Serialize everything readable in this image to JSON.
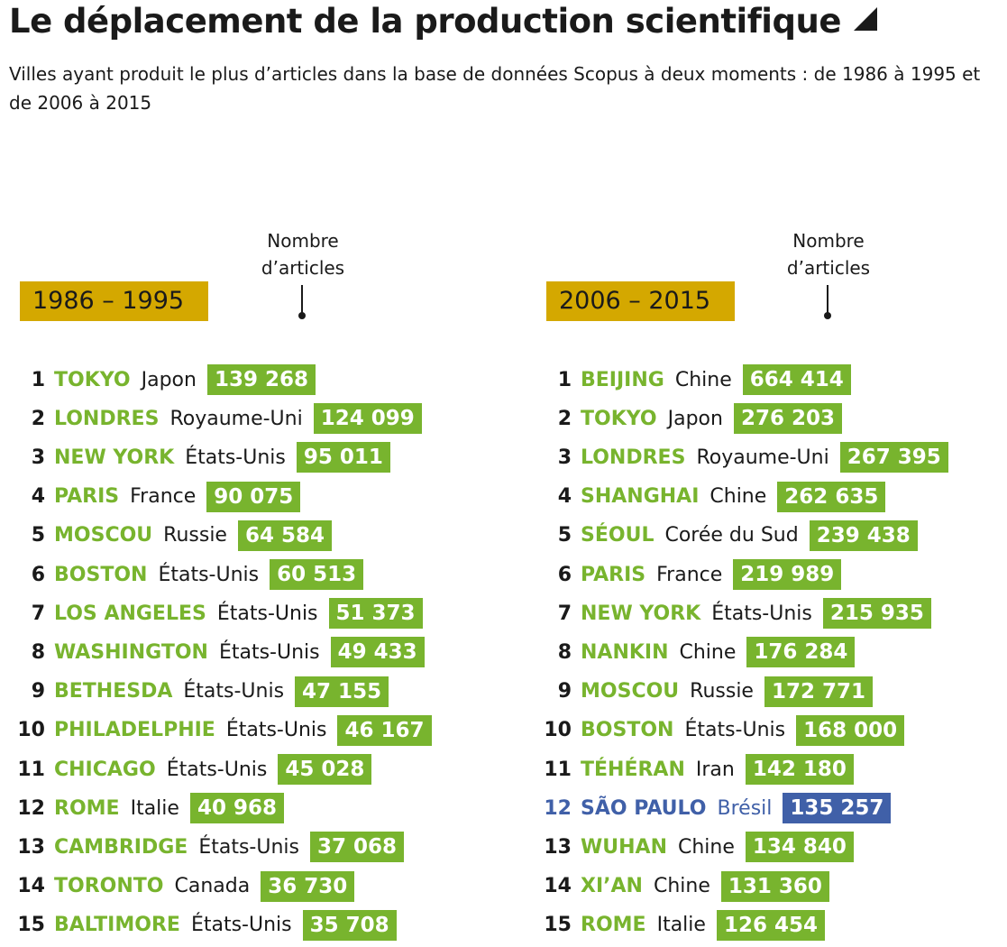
{
  "title": "Le déplacement de la production scientifique",
  "subtitle": "Villes ayant produit le plus d’articles dans la base de données Scopus à deux moments : de 1986 à 1995 et de 2006 à 2015",
  "count_label": "Nombre d’articles",
  "colors": {
    "bar": "#78b42e",
    "highlight": "#4060a8",
    "period_badge": "#d4a800"
  },
  "chart_data": [
    {
      "type": "table",
      "period": "1986 – 1995",
      "columns": [
        "rank",
        "city",
        "country",
        "Nombre d’articles"
      ],
      "rows": [
        {
          "rank": "1",
          "city": "TOKYO",
          "country": "Japon",
          "value": "139 268"
        },
        {
          "rank": "2",
          "city": "LONDRES",
          "country": "Royaume-Uni",
          "value": "124 099"
        },
        {
          "rank": "3",
          "city": "NEW YORK",
          "country": "États-Unis",
          "value": "95 011"
        },
        {
          "rank": "4",
          "city": "PARIS",
          "country": "France",
          "value": "90 075"
        },
        {
          "rank": "5",
          "city": "MOSCOU",
          "country": "Russie",
          "value": "64 584"
        },
        {
          "rank": "6",
          "city": "BOSTON",
          "country": "États-Unis",
          "value": "60 513"
        },
        {
          "rank": "7",
          "city": "LOS ANGELES",
          "country": "États-Unis",
          "value": "51 373"
        },
        {
          "rank": "8",
          "city": "WASHINGTON",
          "country": "États-Unis",
          "value": "49 433"
        },
        {
          "rank": "9",
          "city": "BETHESDA",
          "country": "États-Unis",
          "value": "47 155"
        },
        {
          "rank": "10",
          "city": "PHILADELPHIE",
          "country": "États-Unis",
          "value": "46 167"
        },
        {
          "rank": "11",
          "city": "CHICAGO",
          "country": "États-Unis",
          "value": "45 028"
        },
        {
          "rank": "12",
          "city": "ROME",
          "country": "Italie",
          "value": "40 968"
        },
        {
          "rank": "13",
          "city": "CAMBRIDGE",
          "country": "États-Unis",
          "value": "37 068"
        },
        {
          "rank": "14",
          "city": "TORONTO",
          "country": "Canada",
          "value": "36 730"
        },
        {
          "rank": "15",
          "city": "BALTIMORE",
          "country": "États-Unis",
          "value": "35 708"
        }
      ]
    },
    {
      "type": "table",
      "period": "2006 – 2015",
      "columns": [
        "rank",
        "city",
        "country",
        "Nombre d’articles"
      ],
      "rows": [
        {
          "rank": "1",
          "city": "BEIJING",
          "country": "Chine",
          "value": "664 414"
        },
        {
          "rank": "2",
          "city": "TOKYO",
          "country": "Japon",
          "value": "276 203"
        },
        {
          "rank": "3",
          "city": "LONDRES",
          "country": "Royaume-Uni",
          "value": "267 395"
        },
        {
          "rank": "4",
          "city": "SHANGHAI",
          "country": "Chine",
          "value": "262 635"
        },
        {
          "rank": "5",
          "city": "SÉOUL",
          "country": "Corée du Sud",
          "value": "239 438"
        },
        {
          "rank": "6",
          "city": "PARIS",
          "country": "France",
          "value": "219 989"
        },
        {
          "rank": "7",
          "city": "NEW YORK",
          "country": "États-Unis",
          "value": "215 935"
        },
        {
          "rank": "8",
          "city": "NANKIN",
          "country": "Chine",
          "value": "176 284"
        },
        {
          "rank": "9",
          "city": "MOSCOU",
          "country": "Russie",
          "value": "172 771"
        },
        {
          "rank": "10",
          "city": "BOSTON",
          "country": "États-Unis",
          "value": "168 000"
        },
        {
          "rank": "11",
          "city": "TÉHÉRAN",
          "country": "Iran",
          "value": "142 180"
        },
        {
          "rank": "12",
          "city": "SÃO PAULO",
          "country": "Brésil",
          "value": "135 257",
          "highlight": true
        },
        {
          "rank": "13",
          "city": "WUHAN",
          "country": "Chine",
          "value": "134 840"
        },
        {
          "rank": "14",
          "city": "XI’AN",
          "country": "Chine",
          "value": "131 360"
        },
        {
          "rank": "15",
          "city": "ROME",
          "country": "Italie",
          "value": "126 454"
        }
      ]
    }
  ]
}
